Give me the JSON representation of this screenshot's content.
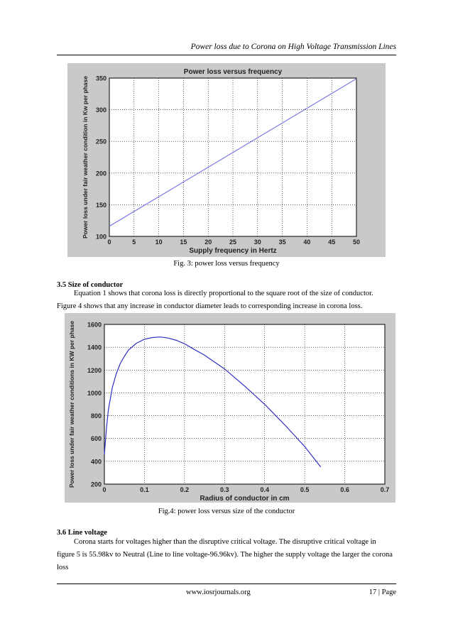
{
  "header": {
    "running_title": "Power loss due to Corona on High Voltage Transmission Lines"
  },
  "figure3": {
    "caption": "Fig. 3: power loss versus frequency",
    "chart_data": {
      "type": "line",
      "title": "Power loss versus frequency",
      "xlabel": "Supply frequency in Hertz",
      "ylabel": "Power loss under fair weather condition in Kw per phase",
      "xlim": [
        0,
        50
      ],
      "ylim": [
        100,
        350
      ],
      "xticks": [
        0,
        5,
        10,
        15,
        20,
        25,
        30,
        35,
        40,
        45,
        50
      ],
      "yticks": [
        100,
        150,
        200,
        250,
        300,
        350
      ],
      "grid": true,
      "color": "#7a7ae0",
      "x": [
        0,
        50
      ],
      "y": [
        116,
        349
      ]
    }
  },
  "section35": {
    "heading": "3.5 Size of conductor",
    "para1": "Equation 1 shows that corona loss is directly proportional to the square root of the size of conductor.",
    "para2": "Figure 4 shows that any increase in conductor diameter leads to corresponding increase in corona loss."
  },
  "figure4": {
    "caption": "Fig.4: power loss versus size of the conductor",
    "chart_data": {
      "type": "line",
      "title": "",
      "xlabel": "Radius of conductor in cm",
      "ylabel": "Power loss under fair weather conditions in KW per phase",
      "xlim": [
        0,
        0.7
      ],
      "ylim": [
        200,
        1600
      ],
      "xticks": [
        0,
        0.1,
        0.2,
        0.3,
        0.4,
        0.5,
        0.6,
        0.7
      ],
      "yticks": [
        200,
        400,
        600,
        800,
        1000,
        1200,
        1400,
        1600
      ],
      "grid": true,
      "color": "#3030c0",
      "x": [
        0,
        0.005,
        0.01,
        0.02,
        0.03,
        0.04,
        0.05,
        0.06,
        0.08,
        0.1,
        0.12,
        0.14,
        0.16,
        0.18,
        0.2,
        0.22,
        0.25,
        0.3,
        0.35,
        0.4,
        0.45,
        0.5,
        0.54
      ],
      "y": [
        460,
        680,
        850,
        1050,
        1170,
        1260,
        1320,
        1375,
        1435,
        1470,
        1485,
        1490,
        1480,
        1460,
        1430,
        1390,
        1330,
        1210,
        1060,
        900,
        720,
        530,
        350
      ]
    }
  },
  "section36": {
    "heading": "3.6 Line voltage",
    "para1": "Corona starts for voltages higher than the disruptive critical voltage. The disruptive critical voltage in",
    "para2": "figure 5 is 55.98kv to Neutral (Line to line voltage-96.96kv). The higher the supply voltage the larger the corona",
    "para3": "loss"
  },
  "footer": {
    "site": "www.iosrjournals.org",
    "page": "17 | Page"
  }
}
